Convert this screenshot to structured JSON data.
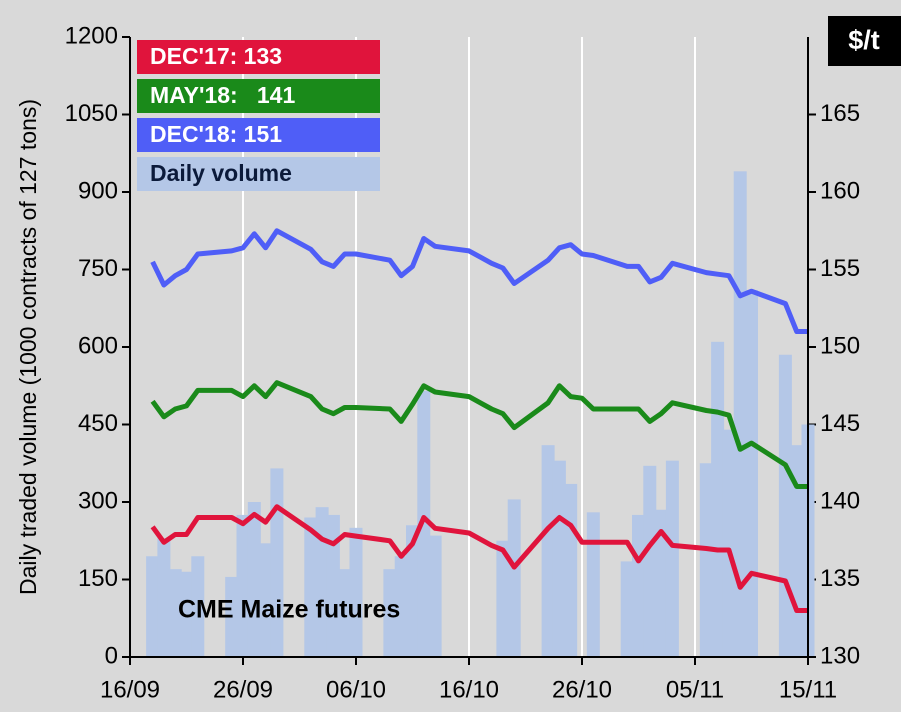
{
  "chart_data": {
    "type": "bar-line",
    "y_label": "Daily traded volume  (1000 contracts of 127 tons)",
    "y2_label": "$/t",
    "annotation": "CME Maize futures",
    "x": [
      "18/09",
      "19/09",
      "20/09",
      "21/09",
      "22/09",
      "25/09",
      "26/09",
      "27/09",
      "28/09",
      "29/09",
      "02/10",
      "03/10",
      "04/10",
      "05/10",
      "06/10",
      "09/10",
      "10/10",
      "11/10",
      "12/10",
      "13/10",
      "16/10",
      "17/10",
      "18/10",
      "19/10",
      "20/10",
      "23/10",
      "24/10",
      "25/10",
      "26/10",
      "27/10",
      "30/10",
      "31/10",
      "01/11",
      "02/11",
      "03/11",
      "06/11",
      "07/11",
      "08/11",
      "09/11",
      "10/11",
      "13/11",
      "14/11",
      "15/11"
    ],
    "xlim": [
      "16/09",
      "15/11"
    ],
    "xticks": [
      "16/09",
      "26/09",
      "06/10",
      "16/10",
      "26/10",
      "05/11",
      "15/11"
    ],
    "ylim": [
      0,
      1200
    ],
    "yticks": [
      0,
      150,
      300,
      450,
      600,
      750,
      900,
      1050,
      1200
    ],
    "y2lim": [
      130,
      170
    ],
    "y2ticks": [
      130,
      135,
      140,
      145,
      150,
      155,
      160,
      165
    ],
    "grid": "x",
    "series": [
      {
        "name": "DEC'17: 133",
        "type": "line",
        "axis": "y2",
        "color": "#e0143c",
        "values": [
          138.4,
          137.4,
          137.9,
          137.9,
          139,
          139,
          138.6,
          139.2,
          138.7,
          139.7,
          138.2,
          137.6,
          137.3,
          137.9,
          137.8,
          137.5,
          136.5,
          137.3,
          139,
          138.3,
          138,
          137.6,
          137.2,
          136.9,
          135.8,
          138.3,
          139,
          138.5,
          137.4,
          137.4,
          137.4,
          136.2,
          137.2,
          138.1,
          137.2,
          137,
          136.9,
          136.9,
          134.5,
          135.4,
          134.9,
          133,
          133
        ]
      },
      {
        "name": "MAY'18:   141",
        "type": "line",
        "axis": "y2",
        "color": "#1a8a1a",
        "values": [
          146.5,
          145.5,
          146,
          146.2,
          147.2,
          147.2,
          146.8,
          147.5,
          146.8,
          147.7,
          146.8,
          146,
          145.7,
          146.1,
          146.1,
          146,
          145.2,
          146.3,
          147.5,
          147.1,
          146.8,
          146.4,
          146,
          145.7,
          144.8,
          146.4,
          147.5,
          146.8,
          146.7,
          146,
          146,
          146,
          145.2,
          145.7,
          146.4,
          145.9,
          145.8,
          145.6,
          143.4,
          143.8,
          142.4,
          141,
          141
        ]
      },
      {
        "name": "DEC'18: 151",
        "type": "line",
        "axis": "y2",
        "color": "#4f5ef7",
        "values": [
          155.5,
          154,
          154.6,
          155,
          156,
          156.2,
          156.4,
          157.3,
          156.4,
          157.5,
          156.3,
          155.5,
          155.2,
          156,
          156,
          155.6,
          154.6,
          155.2,
          157,
          156.5,
          156.2,
          155.8,
          155.4,
          155.1,
          154.1,
          155.6,
          156.4,
          156.6,
          156,
          155.9,
          155.2,
          155.2,
          154.2,
          154.5,
          155.4,
          154.8,
          154.7,
          154.6,
          153.3,
          153.6,
          152.8,
          151,
          151
        ]
      },
      {
        "name": "Daily volume",
        "type": "bar",
        "axis": "y",
        "color": "#b4c7e7",
        "values": [
          195,
          230,
          170,
          165,
          195,
          155,
          275,
          300,
          220,
          365,
          270,
          290,
          275,
          170,
          250,
          170,
          195,
          255,
          515,
          235,
          null,
          null,
          null,
          225,
          305,
          410,
          380,
          335,
          null,
          280,
          185,
          275,
          370,
          285,
          380,
          375,
          610,
          440,
          940,
          710,
          585,
          410,
          450
        ]
      }
    ]
  }
}
